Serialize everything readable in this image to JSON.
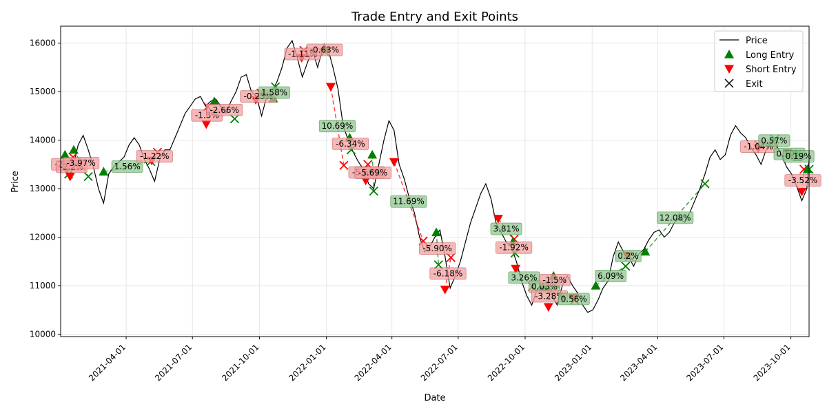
{
  "chart_data": {
    "type": "line",
    "title": "Trade Entry and Exit Points",
    "xlabel": "Date",
    "ylabel": "Price",
    "xlim": [
      "2021-01-01",
      "2023-10-26"
    ],
    "ylim": [
      9950,
      16350
    ],
    "x_ticks": [
      "2021-04-01",
      "2021-07-01",
      "2021-10-01",
      "2022-01-01",
      "2022-04-01",
      "2022-07-01",
      "2022-10-01",
      "2023-01-01",
      "2023-04-01",
      "2023-07-01",
      "2023-10-01"
    ],
    "y_ticks": [
      10000,
      11000,
      12000,
      13000,
      14000,
      15000,
      16000
    ],
    "grid": true,
    "legend": {
      "position": "top-right",
      "entries": [
        {
          "name": "Price",
          "marker": "line",
          "color": "#000000"
        },
        {
          "name": "Long Entry",
          "marker": "triangle-up",
          "color": "#008000"
        },
        {
          "name": "Short Entry",
          "marker": "triangle-down",
          "color": "#ff0000"
        },
        {
          "name": "Exit",
          "marker": "x",
          "color": "#000000"
        }
      ]
    },
    "colors": {
      "price": "#000000",
      "long": "#008000",
      "short": "#ff0000",
      "win_box": "#90c890",
      "loss_box": "#f4a0a0"
    },
    "price_series": [
      [
        "2021-01-04",
        13650
      ],
      [
        "2021-01-08",
        13500
      ],
      [
        "2021-01-13",
        13200
      ],
      [
        "2021-01-18",
        13450
      ],
      [
        "2021-01-25",
        13900
      ],
      [
        "2021-02-01",
        14100
      ],
      [
        "2021-02-08",
        13800
      ],
      [
        "2021-02-15",
        13450
      ],
      [
        "2021-02-22",
        13000
      ],
      [
        "2021-03-01",
        12700
      ],
      [
        "2021-03-08",
        13300
      ],
      [
        "2021-03-15",
        13450
      ],
      [
        "2021-03-22",
        13550
      ],
      [
        "2021-03-29",
        13650
      ],
      [
        "2021-04-05",
        13900
      ],
      [
        "2021-04-12",
        14050
      ],
      [
        "2021-04-19",
        13900
      ],
      [
        "2021-04-26",
        13600
      ],
      [
        "2021-05-03",
        13400
      ],
      [
        "2021-05-10",
        13150
      ],
      [
        "2021-05-17",
        13600
      ],
      [
        "2021-05-24",
        13800
      ],
      [
        "2021-05-31",
        13800
      ],
      [
        "2021-06-07",
        14050
      ],
      [
        "2021-06-14",
        14300
      ],
      [
        "2021-06-21",
        14550
      ],
      [
        "2021-06-28",
        14700
      ],
      [
        "2021-07-05",
        14850
      ],
      [
        "2021-07-12",
        14900
      ],
      [
        "2021-07-19",
        14700
      ],
      [
        "2021-07-26",
        14800
      ],
      [
        "2021-08-02",
        14850
      ],
      [
        "2021-08-09",
        14700
      ],
      [
        "2021-08-16",
        14550
      ],
      [
        "2021-08-23",
        14800
      ],
      [
        "2021-08-30",
        15000
      ],
      [
        "2021-09-06",
        15300
      ],
      [
        "2021-09-13",
        15350
      ],
      [
        "2021-09-20",
        15000
      ],
      [
        "2021-09-27",
        14900
      ],
      [
        "2021-10-04",
        14500
      ],
      [
        "2021-10-11",
        14900
      ],
      [
        "2021-10-18",
        15000
      ],
      [
        "2021-10-25",
        15200
      ],
      [
        "2021-11-01",
        15500
      ],
      [
        "2021-11-08",
        15900
      ],
      [
        "2021-11-15",
        16050
      ],
      [
        "2021-11-22",
        15700
      ],
      [
        "2021-11-29",
        15300
      ],
      [
        "2021-12-06",
        15600
      ],
      [
        "2021-12-13",
        15850
      ],
      [
        "2021-12-20",
        15500
      ],
      [
        "2021-12-27",
        15900
      ],
      [
        "2022-01-03",
        15900
      ],
      [
        "2022-01-10",
        15500
      ],
      [
        "2022-01-17",
        15050
      ],
      [
        "2022-01-24",
        14300
      ],
      [
        "2022-01-31",
        14000
      ],
      [
        "2022-02-07",
        13750
      ],
      [
        "2022-02-14",
        13550
      ],
      [
        "2022-02-21",
        13400
      ],
      [
        "2022-02-28",
        13100
      ],
      [
        "2022-03-07",
        13000
      ],
      [
        "2022-03-14",
        13500
      ],
      [
        "2022-03-21",
        14000
      ],
      [
        "2022-03-28",
        14400
      ],
      [
        "2022-04-04",
        14200
      ],
      [
        "2022-04-11",
        13500
      ],
      [
        "2022-04-18",
        13200
      ],
      [
        "2022-04-25",
        12800
      ],
      [
        "2022-05-02",
        12500
      ],
      [
        "2022-05-09",
        12000
      ],
      [
        "2022-05-16",
        11700
      ],
      [
        "2022-05-23",
        11800
      ],
      [
        "2022-05-30",
        12000
      ],
      [
        "2022-06-06",
        12150
      ],
      [
        "2022-06-13",
        11600
      ],
      [
        "2022-06-20",
        10950
      ],
      [
        "2022-06-27",
        11200
      ],
      [
        "2022-07-04",
        11500
      ],
      [
        "2022-07-11",
        11900
      ],
      [
        "2022-07-18",
        12300
      ],
      [
        "2022-07-25",
        12600
      ],
      [
        "2022-08-01",
        12900
      ],
      [
        "2022-08-08",
        13100
      ],
      [
        "2022-08-15",
        12800
      ],
      [
        "2022-08-22",
        12300
      ],
      [
        "2022-08-29",
        12100
      ],
      [
        "2022-09-05",
        11900
      ],
      [
        "2022-09-12",
        11800
      ],
      [
        "2022-09-19",
        11500
      ],
      [
        "2022-09-26",
        11100
      ],
      [
        "2022-10-03",
        10800
      ],
      [
        "2022-10-10",
        10600
      ],
      [
        "2022-10-17",
        10900
      ],
      [
        "2022-10-24",
        11050
      ],
      [
        "2022-10-31",
        11100
      ],
      [
        "2022-11-07",
        10800
      ],
      [
        "2022-11-14",
        10600
      ],
      [
        "2022-11-21",
        11000
      ],
      [
        "2022-11-28",
        11200
      ],
      [
        "2022-12-05",
        11000
      ],
      [
        "2022-12-12",
        10850
      ],
      [
        "2022-12-19",
        10600
      ],
      [
        "2022-12-26",
        10450
      ],
      [
        "2023-01-02",
        10500
      ],
      [
        "2023-01-09",
        10700
      ],
      [
        "2023-01-16",
        10950
      ],
      [
        "2023-01-23",
        11100
      ],
      [
        "2023-01-30",
        11600
      ],
      [
        "2023-02-06",
        11900
      ],
      [
        "2023-02-13",
        11700
      ],
      [
        "2023-02-20",
        11600
      ],
      [
        "2023-02-27",
        11400
      ],
      [
        "2023-03-06",
        11650
      ],
      [
        "2023-03-13",
        11750
      ],
      [
        "2023-03-20",
        11950
      ],
      [
        "2023-03-27",
        12100
      ],
      [
        "2023-04-03",
        12150
      ],
      [
        "2023-04-10",
        12000
      ],
      [
        "2023-04-17",
        12100
      ],
      [
        "2023-04-24",
        12300
      ],
      [
        "2023-05-01",
        12400
      ],
      [
        "2023-05-08",
        12300
      ],
      [
        "2023-05-15",
        12500
      ],
      [
        "2023-05-22",
        12750
      ],
      [
        "2023-05-29",
        13000
      ],
      [
        "2023-06-05",
        13300
      ],
      [
        "2023-06-12",
        13650
      ],
      [
        "2023-06-19",
        13800
      ],
      [
        "2023-06-26",
        13600
      ],
      [
        "2023-07-03",
        13700
      ],
      [
        "2023-07-10",
        14100
      ],
      [
        "2023-07-17",
        14300
      ],
      [
        "2023-07-24",
        14150
      ],
      [
        "2023-07-31",
        14050
      ],
      [
        "2023-08-07",
        13850
      ],
      [
        "2023-08-14",
        13700
      ],
      [
        "2023-08-21",
        13500
      ],
      [
        "2023-08-28",
        13800
      ],
      [
        "2023-09-04",
        14000
      ],
      [
        "2023-09-11",
        13900
      ],
      [
        "2023-09-18",
        13700
      ],
      [
        "2023-09-25",
        13450
      ],
      [
        "2023-10-02",
        13300
      ],
      [
        "2023-10-09",
        13050
      ],
      [
        "2023-10-16",
        12750
      ],
      [
        "2023-10-23",
        13000
      ],
      [
        "2023-10-26",
        13600
      ]
    ],
    "trades": [
      {
        "dir": "long",
        "entry": [
          "2021-01-07",
          13700
        ],
        "exit": [
          "2021-01-12",
          13300
        ],
        "pnl": "-2.2%"
      },
      {
        "dir": "short",
        "entry": [
          "2021-01-14",
          13250
        ],
        "exit": [
          "2021-01-18",
          13650
        ],
        "pnl": "-2.2%"
      },
      {
        "dir": "long",
        "entry": [
          "2021-01-19",
          13800
        ],
        "exit": [
          "2021-02-08",
          13250
        ],
        "pnl": "-3.97%"
      },
      {
        "dir": "long",
        "entry": [
          "2021-03-01",
          13350
        ],
        "exit": [
          "2021-05-05",
          13560
        ],
        "pnl": "1.56%"
      },
      {
        "dir": "short",
        "entry": [
          "2021-05-06",
          13580
        ],
        "exit": [
          "2021-05-14",
          13750
        ],
        "pnl": "-1.22%"
      },
      {
        "dir": "short",
        "entry": [
          "2021-07-20",
          14330
        ],
        "exit": [
          "2021-07-22",
          14690
        ],
        "pnl": "-1.3%"
      },
      {
        "dir": "long",
        "entry": [
          "2021-07-31",
          14800
        ],
        "exit": [
          "2021-08-28",
          14440
        ],
        "pnl": "-2.66%"
      },
      {
        "dir": "short",
        "entry": [
          "2021-09-26",
          14830
        ],
        "exit": [
          "2021-10-03",
          14970
        ],
        "pnl": "-0.25%"
      },
      {
        "dir": "long",
        "entry": [
          "2021-10-20",
          14860
        ],
        "exit": [
          "2021-10-23",
          15100
        ],
        "pnl": "1.58%"
      },
      {
        "dir": "short",
        "entry": [
          "2021-11-28",
          15700
        ],
        "exit": [
          "2021-12-01",
          15850
        ],
        "pnl": "-1.11%"
      },
      {
        "dir": "long",
        "entry": [
          "2021-12-29",
          15900
        ],
        "exit": [
          "2021-12-30",
          15820
        ],
        "pnl": "-0.63%"
      },
      {
        "dir": "short",
        "entry": [
          "2022-01-07",
          15100
        ],
        "exit": [
          "2022-01-25",
          13480
        ],
        "pnl": "10.69%"
      },
      {
        "dir": "long",
        "entry": [
          "2022-02-02",
          14050
        ],
        "exit": [
          "2022-02-04",
          13800
        ],
        "pnl": "-6.34%"
      },
      {
        "dir": "short",
        "entry": [
          "2022-02-24",
          13170
        ],
        "exit": [
          "2022-02-27",
          13500
        ],
        "pnl": "-5.69%"
      },
      {
        "dir": "long",
        "entry": [
          "2022-03-05",
          13700
        ],
        "exit": [
          "2022-03-07",
          12950
        ],
        "pnl": "-5.69%"
      },
      {
        "dir": "short",
        "entry": [
          "2022-04-04",
          13550
        ],
        "exit": [
          "2022-05-14",
          11920
        ],
        "pnl": "11.69%"
      },
      {
        "dir": "long",
        "entry": [
          "2022-06-01",
          12100
        ],
        "exit": [
          "2022-06-04",
          11430
        ],
        "pnl": "-5.90%"
      },
      {
        "dir": "short",
        "entry": [
          "2022-06-13",
          10920
        ],
        "exit": [
          "2022-06-21",
          11580
        ],
        "pnl": "-6.18%"
      },
      {
        "dir": "short",
        "entry": [
          "2022-08-25",
          12380
        ],
        "exit": [
          "2022-09-16",
          11960
        ],
        "pnl": "3.81%"
      },
      {
        "dir": "long",
        "entry": [
          "2022-09-14",
          11900
        ],
        "exit": [
          "2022-09-17",
          11670
        ],
        "pnl": "-1.92%"
      },
      {
        "dir": "short",
        "entry": [
          "2022-09-18",
          11350
        ],
        "exit": [
          "2022-10-11",
          10980
        ],
        "pnl": "3.26%"
      },
      {
        "dir": "long",
        "entry": [
          "2022-10-26",
          10980
        ],
        "exit": [
          "2022-10-29",
          10980
        ],
        "pnl": "0.03%"
      },
      {
        "dir": "short",
        "entry": [
          "2022-11-02",
          10560
        ],
        "exit": [
          "2022-11-05",
          11000
        ],
        "pnl": "-3.28%"
      },
      {
        "dir": "long",
        "entry": [
          "2022-11-09",
          11200
        ],
        "exit": [
          "2022-11-12",
          11030
        ],
        "pnl": "-1.5%"
      },
      {
        "dir": "short",
        "entry": [
          "2022-12-06",
          10750
        ],
        "exit": [
          "2022-12-08",
          10700
        ],
        "pnl": "0.56%"
      },
      {
        "dir": "long",
        "entry": [
          "2023-01-06",
          11000
        ],
        "exit": [
          "2023-02-16",
          11400
        ],
        "pnl": "6.09%"
      },
      {
        "dir": "short",
        "entry": [
          "2023-02-18",
          11620
        ],
        "exit": [
          "2023-02-21",
          11600
        ],
        "pnl": "0.2%"
      },
      {
        "dir": "long",
        "entry": [
          "2023-03-15",
          11700
        ],
        "exit": [
          "2023-06-05",
          13100
        ],
        "pnl": "12.08%"
      },
      {
        "dir": "short",
        "entry": [
          "2023-08-17",
          13830
        ],
        "exit": [
          "2023-08-18",
          13900
        ],
        "pnl": "-1.04%"
      },
      {
        "dir": "long",
        "entry": [
          "2023-09-07",
          13960
        ],
        "exit": [
          "2023-09-09",
          14020
        ],
        "pnl": "0.57%"
      },
      {
        "dir": "short",
        "entry": [
          "2023-09-26",
          13730
        ],
        "exit": [
          "2023-10-02",
          13700
        ],
        "pnl": "0.19%"
      },
      {
        "dir": "long",
        "entry": [
          "2023-10-10",
          13650
        ],
        "exit": [
          "2023-10-13",
          13680
        ],
        "pnl": "0.19%"
      },
      {
        "dir": "short",
        "entry": [
          "2023-10-16",
          12940
        ],
        "exit": [
          "2023-10-19",
          13400
        ],
        "pnl": "-3.52%"
      },
      {
        "dir": "long",
        "entry": [
          "2023-10-24",
          13400
        ],
        "exit": [
          "2023-10-26",
          13400
        ],
        "pnl": ""
      }
    ]
  }
}
